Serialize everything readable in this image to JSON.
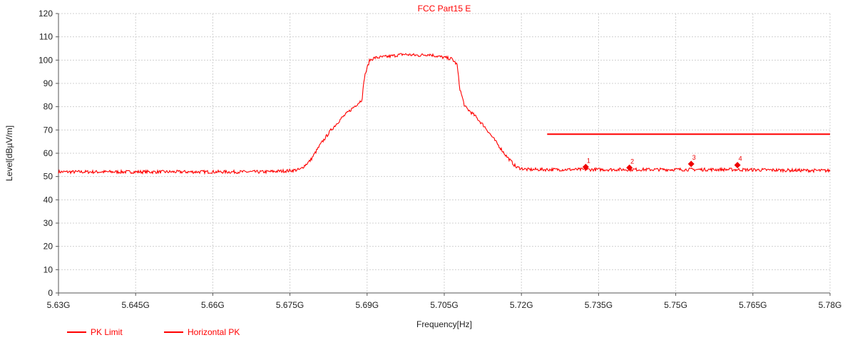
{
  "chart_data": {
    "type": "line",
    "title": "FCC Part15 E",
    "xlabel": "Frequency[Hz]",
    "ylabel": "Level[dBµV/m]",
    "xlim": [
      5.63,
      5.78
    ],
    "ylim": [
      0,
      120
    ],
    "x_tick_values": [
      5.63,
      5.645,
      5.66,
      5.675,
      5.69,
      5.705,
      5.72,
      5.735,
      5.75,
      5.765,
      5.78
    ],
    "x_tick_labels": [
      "5.63G",
      "5.645G",
      "5.66G",
      "5.675G",
      "5.69G",
      "5.705G",
      "5.72G",
      "5.735G",
      "5.75G",
      "5.765G",
      "5.78G"
    ],
    "y_ticks": [
      0,
      10,
      20,
      30,
      40,
      50,
      60,
      70,
      80,
      90,
      100,
      110,
      120
    ],
    "grid": true,
    "legend_position": "bottom-left",
    "series": [
      {
        "name": "PK Limit",
        "color": "#ff0000",
        "x": [
          5.725,
          5.78
        ],
        "y": [
          68.2,
          68.2
        ]
      },
      {
        "name": "Horizontal PK",
        "color": "#ff0000",
        "x": [
          5.63,
          5.65,
          5.67,
          5.675,
          5.677,
          5.679,
          5.681,
          5.683,
          5.685,
          5.687,
          5.689,
          5.6895,
          5.6905,
          5.6915,
          5.694,
          5.697,
          5.7,
          5.702,
          5.704,
          5.7065,
          5.7075,
          5.708,
          5.709,
          5.711,
          5.713,
          5.715,
          5.717,
          5.719,
          5.721,
          5.725,
          5.74,
          5.76,
          5.78
        ],
        "y": [
          52,
          52,
          52,
          52.5,
          53,
          57,
          64,
          70,
          75,
          79,
          83,
          93,
          100,
          101,
          101.5,
          102.5,
          102,
          102.5,
          101.5,
          100.5,
          98,
          88,
          80,
          76,
          71,
          65,
          59,
          54,
          53,
          53,
          53,
          53,
          52.5
        ]
      }
    ],
    "markers": [
      {
        "label": "1",
        "x": 5.7325,
        "y": 54.1
      },
      {
        "label": "2",
        "x": 5.741,
        "y": 53.8
      },
      {
        "label": "3",
        "x": 5.753,
        "y": 55.4
      },
      {
        "label": "4",
        "x": 5.762,
        "y": 54.9
      }
    ]
  }
}
